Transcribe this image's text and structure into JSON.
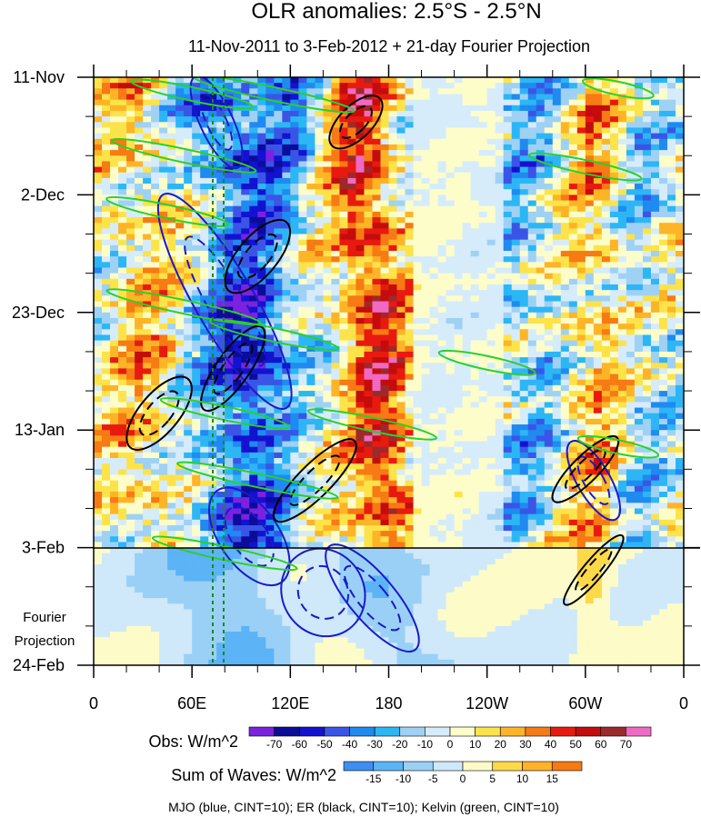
{
  "chart_data": {
    "type": "heatmap",
    "title": "OLR anomalies: 2.5°S - 2.5°N",
    "subtitle": "11-Nov-2011 to 3-Feb-2012 + 21-day Fourier Projection",
    "x_ticks": [
      "0",
      "60E",
      "120E",
      "180",
      "120W",
      "60W",
      "0"
    ],
    "x_tick_values": [
      0,
      60,
      120,
      180,
      240,
      300,
      360
    ],
    "y_ticks": [
      "11-Nov",
      "2-Dec",
      "23-Dec",
      "13-Jan",
      "3-Feb",
      "24-Feb"
    ],
    "y_tick_days": [
      0,
      21,
      42,
      63,
      84,
      105
    ],
    "forecast_start_label": "3-Feb",
    "forecast_label": [
      "Fourier",
      "Projection"
    ],
    "obs_colorbar": {
      "label": "Obs: W/m^2",
      "levels": [
        -70,
        -60,
        -50,
        -40,
        -30,
        -20,
        -10,
        0,
        10,
        20,
        30,
        40,
        50,
        60,
        70
      ],
      "colors": [
        "#7a22e0",
        "#0c0c9a",
        "#1212cf",
        "#3a55e6",
        "#1f8af0",
        "#2cb6f5",
        "#9fd1f4",
        "#d6ecfb",
        "#fdfdca",
        "#fde34a",
        "#fdb426",
        "#f77a14",
        "#e81a10",
        "#c40c0c",
        "#9c2a2a",
        "#f06ac4"
      ]
    },
    "waves_colorbar": {
      "label": "Sum of Waves: W/m^2",
      "levels": [
        -15,
        -10,
        -5,
        0,
        5,
        10,
        15
      ],
      "colors": [
        "#3d8ef0",
        "#5cb3f6",
        "#9ad0f5",
        "#cfe8fa",
        "#fdfbc8",
        "#fdd94a",
        "#fdb22a",
        "#f67a14"
      ]
    },
    "footnote": "MJO (blue, CINT=10); ER (black, CINT=10); Kelvin (green, CINT=10)",
    "contour_colors": {
      "mjo": "#1a1ac8",
      "er": "#000000",
      "kelvin": "#2ad02a"
    },
    "mjo_contours": [
      {
        "lon": 75,
        "day": 8,
        "rlon": 10,
        "rday": 9,
        "tilt": -25
      },
      {
        "lon": 80,
        "day": 40,
        "rlon": 18,
        "rday": 22,
        "tilt": -30
      },
      {
        "lon": 95,
        "day": 82,
        "rlon": 18,
        "rday": 10,
        "tilt": -35
      },
      {
        "lon": 140,
        "day": 92,
        "rlon": 25,
        "rday": 8,
        "tilt": -30
      },
      {
        "lon": 170,
        "day": 93,
        "rlon": 14,
        "rday": 12,
        "tilt": -40
      },
      {
        "lon": 305,
        "day": 72,
        "rlon": 10,
        "rday": 8,
        "tilt": -30
      }
    ],
    "er_contours": [
      {
        "lon": 40,
        "day": 60,
        "rlon": 12,
        "rday": 8,
        "tilt": 40
      },
      {
        "lon": 85,
        "day": 52,
        "rlon": 10,
        "rday": 9,
        "tilt": 35
      },
      {
        "lon": 100,
        "day": 32,
        "rlon": 12,
        "rday": 8,
        "tilt": 40
      },
      {
        "lon": 135,
        "day": 72,
        "rlon": 10,
        "rday": 10,
        "tilt": 45
      },
      {
        "lon": 160,
        "day": 8,
        "rlon": 10,
        "rday": 6,
        "tilt": 45
      },
      {
        "lon": 300,
        "day": 70,
        "rlon": 8,
        "rday": 8,
        "tilt": 45
      },
      {
        "lon": 305,
        "day": 88,
        "rlon": 6,
        "rday": 8,
        "tilt": 40
      }
    ],
    "kelvin_contours": [
      {
        "lon": 60,
        "day": 3,
        "rlon": 38,
        "rday": 1.2
      },
      {
        "lon": 110,
        "day": 3,
        "rlon": 50,
        "rday": 1.2
      },
      {
        "lon": 55,
        "day": 14,
        "rlon": 45,
        "rday": 1.2
      },
      {
        "lon": 45,
        "day": 24,
        "rlon": 38,
        "rday": 1.2
      },
      {
        "lon": 55,
        "day": 41,
        "rlon": 48,
        "rday": 1.2
      },
      {
        "lon": 110,
        "day": 46,
        "rlon": 40,
        "rday": 1.2
      },
      {
        "lon": 80,
        "day": 60,
        "rlon": 40,
        "rday": 1.2
      },
      {
        "lon": 170,
        "day": 62,
        "rlon": 40,
        "rday": 1.2
      },
      {
        "lon": 100,
        "day": 72,
        "rlon": 50,
        "rday": 1.2
      },
      {
        "lon": 80,
        "day": 85,
        "rlon": 45,
        "rday": 1.2
      },
      {
        "lon": 240,
        "day": 51,
        "rlon": 30,
        "rday": 1.2
      },
      {
        "lon": 320,
        "day": 66,
        "rlon": 25,
        "rday": 1.2
      },
      {
        "lon": 320,
        "day": 2,
        "rlon": 22,
        "rday": 1.2
      },
      {
        "lon": 300,
        "day": 16,
        "rlon": 35,
        "rday": 1.2
      }
    ]
  }
}
